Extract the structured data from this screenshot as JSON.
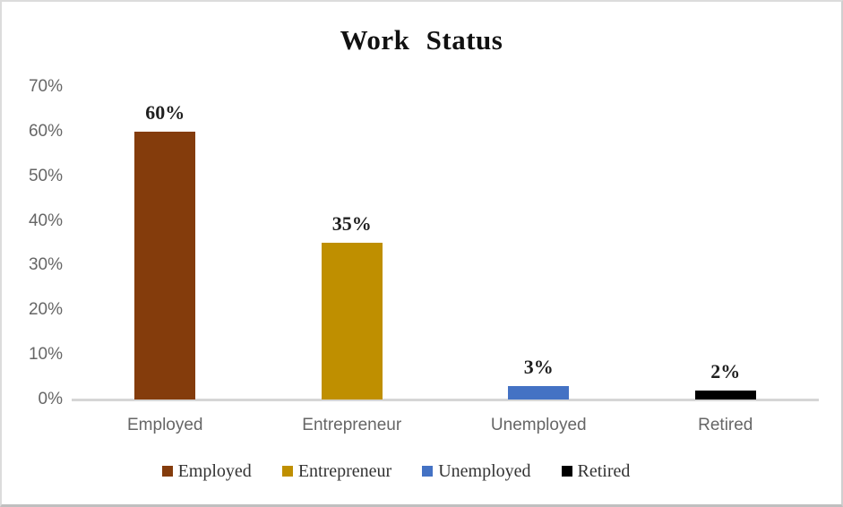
{
  "chart_data": {
    "type": "bar",
    "title": "Work Status",
    "categories": [
      "Employed",
      "Entrepreneur",
      "Unemployed",
      "Retired"
    ],
    "values": [
      60,
      35,
      3,
      2
    ],
    "value_labels": [
      "60%",
      "35%",
      "3%",
      "2%"
    ],
    "colors": [
      "#843C0C",
      "#BF8F00",
      "#4472C4",
      "#000000"
    ],
    "xlabel": "",
    "ylabel": "",
    "ylim": [
      0,
      70
    ],
    "grid": false,
    "y_axis": {
      "ticks": [
        "70%",
        "60%",
        "50%",
        "40%",
        "30%",
        "20%",
        "10%",
        "0%"
      ],
      "tick_values": [
        70,
        60,
        50,
        40,
        30,
        20,
        10,
        0
      ]
    },
    "legend": {
      "position": "bottom",
      "entries": [
        {
          "label": "Employed",
          "color": "#843C0C"
        },
        {
          "label": "Entrepreneur",
          "color": "#BF8F00"
        },
        {
          "label": "Unemployed",
          "color": "#4472C4"
        },
        {
          "label": "Retired",
          "color": "#000000"
        }
      ]
    }
  },
  "ui": {
    "frame_border_color": "#d9d9d9",
    "baseline_color": "#d6d6d6",
    "axis_text_color": "#666666",
    "title_color": "#111111",
    "background_color": "#ffffff"
  }
}
